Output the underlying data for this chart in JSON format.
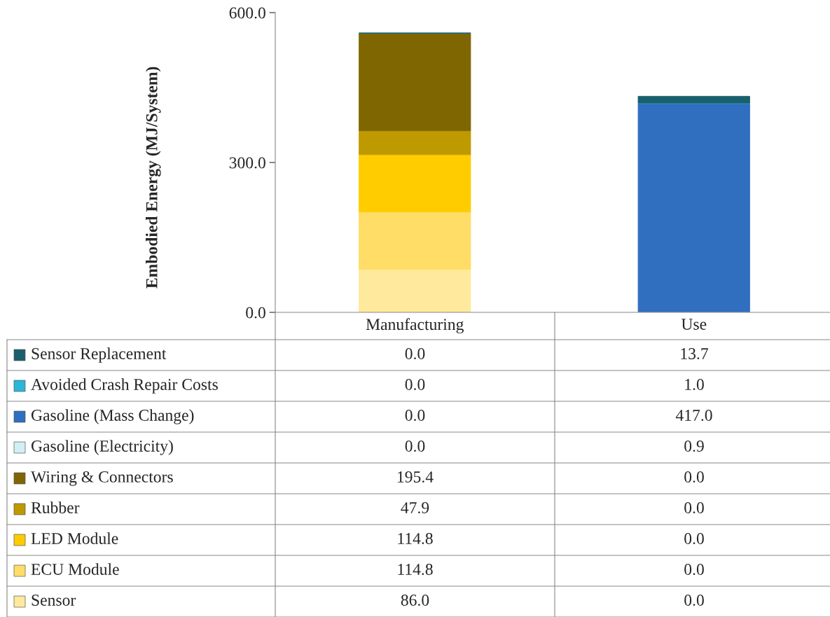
{
  "chart_data": {
    "type": "bar",
    "stacked": true,
    "ylabel": "Embodied Energy (MJ/System)",
    "categories": [
      "Manufacturing",
      "Use"
    ],
    "series": [
      {
        "name": "Sensor",
        "color": "#ffe99c",
        "values": [
          86.0,
          0.0
        ],
        "value_labels": [
          "86.0",
          "0.0"
        ]
      },
      {
        "name": "ECU Module",
        "color": "#ffdd66",
        "values": [
          114.8,
          0.0
        ],
        "value_labels": [
          "114.8",
          "0.0"
        ]
      },
      {
        "name": "LED Module",
        "color": "#ffcc00",
        "values": [
          114.8,
          0.0
        ],
        "value_labels": [
          "114.8",
          "0.0"
        ]
      },
      {
        "name": "Rubber",
        "color": "#bf9900",
        "values": [
          47.9,
          0.0
        ],
        "value_labels": [
          "47.9",
          "0.0"
        ]
      },
      {
        "name": "Wiring & Connectors",
        "color": "#7f6600",
        "values": [
          195.4,
          0.0
        ],
        "value_labels": [
          "195.4",
          "0.0"
        ]
      },
      {
        "name": "Gasoline (Electricity)",
        "color": "#d2eff5",
        "values": [
          0.0,
          0.9
        ],
        "value_labels": [
          "0.0",
          "0.9"
        ]
      },
      {
        "name": "Gasoline (Mass Change)",
        "color": "#306ec0",
        "values": [
          0.0,
          417.0
        ],
        "value_labels": [
          "0.0",
          "417.0"
        ]
      },
      {
        "name": "Avoided Crash Repair Costs",
        "color": "#2bb6d8",
        "values": [
          0.0,
          1.0
        ],
        "value_labels": [
          "0.0",
          "1.0"
        ]
      },
      {
        "name": "Sensor Replacement",
        "color": "#1a5f6e",
        "values": [
          0.0,
          13.7
        ],
        "value_labels": [
          "0.0",
          "13.7"
        ]
      }
    ],
    "ylim": [
      0,
      600
    ],
    "yticks": [
      {
        "value": 0,
        "label": "0.0"
      },
      {
        "value": 300,
        "label": "300.0"
      },
      {
        "value": 600,
        "label": "600.0"
      }
    ],
    "grid": false,
    "legend": "bottom"
  }
}
